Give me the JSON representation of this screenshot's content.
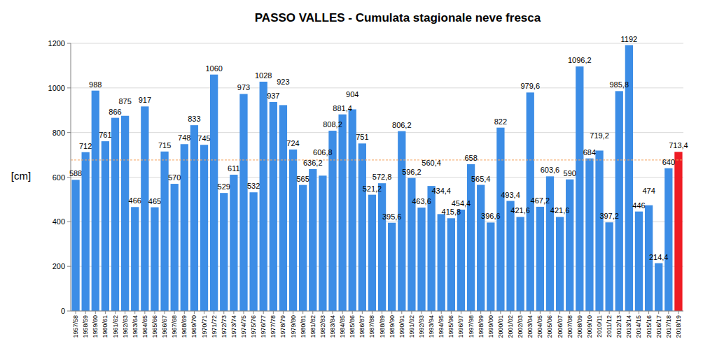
{
  "chart_data": {
    "type": "bar",
    "title": "PASSO VALLES - Cumulata stagionale neve fresca",
    "y_label": "[cm]",
    "categories": [
      "1957/58",
      "1958/59",
      "1959/60",
      "1960/61",
      "1961/62",
      "1962/63",
      "1963/64",
      "1964/65",
      "1965/66",
      "1966/67",
      "1967/68",
      "1968/69",
      "1969/70",
      "1970/71",
      "1971/72",
      "1972/73",
      "1973/74",
      "1974/75",
      "1975/76",
      "1976/77",
      "1977/78",
      "1978/79",
      "1979/80",
      "1980/81",
      "1981/82",
      "1982/83",
      "1983/84",
      "1984/85",
      "1985/86",
      "1986/87",
      "1987/88",
      "1988/89",
      "1989/90",
      "1990/91",
      "1991/92",
      "1992/93",
      "1993/94",
      "1994/95",
      "1995/96",
      "1996/97",
      "1997/98",
      "1998/99",
      "1999/00",
      "2000/01",
      "2001/02",
      "2002/03",
      "2003/04",
      "2004/05",
      "2005/06",
      "2006/07",
      "2007/08",
      "2008/09",
      "2009/10",
      "2010/11",
      "2011/12",
      "2012/13",
      "2013/14",
      "2014/15",
      "2015/16",
      "2016/17",
      "2017/18",
      "2018/19"
    ],
    "values": [
      588,
      712,
      988,
      761,
      866,
      875,
      466,
      917,
      465,
      715,
      570,
      748,
      833,
      745,
      1060,
      529,
      611,
      973,
      532,
      1028,
      937,
      923,
      724,
      565,
      636.2,
      606.8,
      808.2,
      881.4,
      904,
      751,
      521.2,
      572.8,
      395.6,
      806.2,
      596.2,
      463.6,
      560.4,
      434.4,
      415.8,
      454.4,
      658,
      565.4,
      396.6,
      822,
      493.4,
      421.6,
      979.6,
      467.2,
      603.6,
      421.6,
      590,
      1096.2,
      684,
      719.2,
      397.2,
      985.8,
      1192,
      446,
      474,
      214.4,
      640,
      713.4
    ],
    "value_labels": [
      "588",
      "712",
      "988",
      "761",
      "866",
      "875",
      "466",
      "917",
      "465",
      "715",
      "570",
      "748",
      "833",
      "745",
      "1060",
      "529",
      "611",
      "973",
      "532",
      "1028",
      "937",
      "923",
      "724",
      "565",
      "636,2",
      "606,8",
      "808,2",
      "881,4",
      "904",
      "751",
      "521,2",
      "572,8",
      "395,6",
      "806,2",
      "596,2",
      "463,6",
      "560,4",
      "434,4",
      "415,8",
      "454,4",
      "658",
      "565,4",
      "396,6",
      "822",
      "493,4",
      "421,6",
      "979,6",
      "467,2",
      "603,6",
      "421,6",
      "590",
      "1096,2",
      "684",
      "719,2",
      "397,2",
      "985,8",
      "1192",
      "446",
      "474",
      "214,4",
      "640",
      "713,4"
    ],
    "colors": [
      "#3c8de6",
      "#3c8de6",
      "#3c8de6",
      "#3c8de6",
      "#3c8de6",
      "#3c8de6",
      "#3c8de6",
      "#3c8de6",
      "#3c8de6",
      "#3c8de6",
      "#3c8de6",
      "#3c8de6",
      "#3c8de6",
      "#3c8de6",
      "#3c8de6",
      "#3c8de6",
      "#3c8de6",
      "#3c8de6",
      "#3c8de6",
      "#3c8de6",
      "#3c8de6",
      "#3c8de6",
      "#3c8de6",
      "#3c8de6",
      "#3c8de6",
      "#3c8de6",
      "#3c8de6",
      "#3c8de6",
      "#3c8de6",
      "#3c8de6",
      "#3c8de6",
      "#3c8de6",
      "#3c8de6",
      "#3c8de6",
      "#3c8de6",
      "#3c8de6",
      "#3c8de6",
      "#3c8de6",
      "#3c8de6",
      "#3c8de6",
      "#3c8de6",
      "#3c8de6",
      "#3c8de6",
      "#3c8de6",
      "#3c8de6",
      "#3c8de6",
      "#3c8de6",
      "#3c8de6",
      "#3c8de6",
      "#3c8de6",
      "#3c8de6",
      "#3c8de6",
      "#3c8de6",
      "#3c8de6",
      "#3c8de6",
      "#3c8de6",
      "#3c8de6",
      "#3c8de6",
      "#3c8de6",
      "#3c8de6",
      "#3c8de6",
      "#ee1c24"
    ],
    "mean_line": 677,
    "mean_line_color": "#f4a460",
    "ylim": [
      0,
      1200
    ],
    "yticks": [
      0,
      200,
      400,
      600,
      800,
      1000,
      1200
    ],
    "grid": true,
    "data_labels": true
  }
}
